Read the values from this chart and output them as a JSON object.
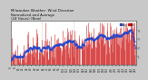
{
  "title": "Milwaukee Weather Wind Direction  Normalized and Average  (24 Hours) (New)",
  "n_points": 250,
  "y_min": 0,
  "y_max": 5,
  "bar_color": "#cc1111",
  "avg_color": "#2244cc",
  "bg_color": "#c8c8c8",
  "plot_bg": "#ffffff",
  "grid_color": "#999999",
  "title_fontsize": 2.8,
  "tick_fontsize": 2.0,
  "right_yticks": [
    1,
    2,
    3,
    4
  ],
  "seed": 42,
  "n_grid_lines": 3,
  "figsize": [
    1.6,
    0.87
  ],
  "dpi": 100
}
